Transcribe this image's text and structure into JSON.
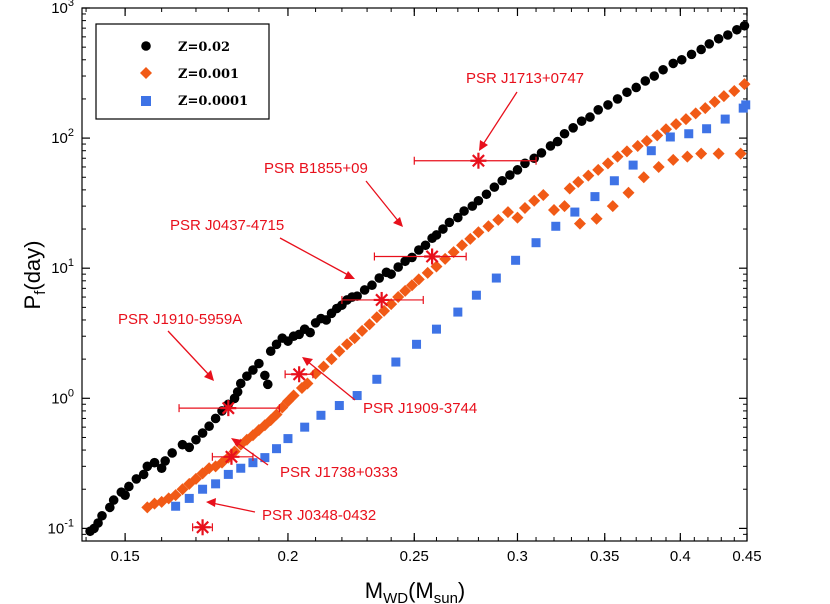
{
  "chart_data": {
    "type": "scatter",
    "title": "",
    "xlabel": {
      "main": "M",
      "sub1": "WD",
      "open": "(M",
      "sub2": "sun",
      "close": ")"
    },
    "ylabel": {
      "main": "P",
      "sub": "f",
      "rest": "(day)"
    },
    "x_scale": "log",
    "y_scale": "log",
    "xlim": [
      0.139,
      0.45
    ],
    "ylim": [
      0.08,
      1000
    ],
    "x_ticks": [
      {
        "value": 0.15,
        "label": "0.15"
      },
      {
        "value": 0.2,
        "label": "0.2"
      },
      {
        "value": 0.25,
        "label": "0.25"
      },
      {
        "value": 0.3,
        "label": "0.3"
      },
      {
        "value": 0.35,
        "label": "0.35"
      },
      {
        "value": 0.4,
        "label": "0.4"
      },
      {
        "value": 0.45,
        "label": "0.45"
      }
    ],
    "y_ticks": [
      {
        "value": 0.1,
        "base": "10",
        "exp": "-1"
      },
      {
        "value": 1,
        "base": "10",
        "exp": "0"
      },
      {
        "value": 10,
        "base": "10",
        "exp": "1"
      },
      {
        "value": 100,
        "base": "10",
        "exp": "2"
      },
      {
        "value": 1000,
        "base": "10",
        "exp": "3"
      }
    ],
    "legend": {
      "position": "top-left",
      "entries": [
        {
          "label": "Z=0.02",
          "marker": "circle",
          "color": "#000000"
        },
        {
          "label": "Z=0.001",
          "marker": "diamond",
          "color": "#f15a16"
        },
        {
          "label": "Z=0.0001",
          "marker": "square",
          "color": "#3e73e6"
        }
      ]
    },
    "series": [
      {
        "name": "Z=0.02",
        "marker": "circle",
        "color": "#000000",
        "points": [
          [
            0.141,
            0.095
          ],
          [
            0.142,
            0.1
          ],
          [
            0.143,
            0.11
          ],
          [
            0.144,
            0.125
          ],
          [
            0.146,
            0.145
          ],
          [
            0.147,
            0.165
          ],
          [
            0.149,
            0.19
          ],
          [
            0.15,
            0.18
          ],
          [
            0.151,
            0.21
          ],
          [
            0.153,
            0.24
          ],
          [
            0.155,
            0.26
          ],
          [
            0.156,
            0.3
          ],
          [
            0.158,
            0.32
          ],
          [
            0.16,
            0.29
          ],
          [
            0.161,
            0.33
          ],
          [
            0.163,
            0.38
          ],
          [
            0.166,
            0.44
          ],
          [
            0.168,
            0.42
          ],
          [
            0.17,
            0.48
          ],
          [
            0.172,
            0.54
          ],
          [
            0.174,
            0.61
          ],
          [
            0.176,
            0.7
          ],
          [
            0.178,
            0.8
          ],
          [
            0.18,
            0.9
          ],
          [
            0.182,
            1.0
          ],
          [
            0.183,
            1.12
          ],
          [
            0.184,
            1.3
          ],
          [
            0.186,
            1.48
          ],
          [
            0.188,
            1.65
          ],
          [
            0.19,
            1.85
          ],
          [
            0.192,
            1.5
          ],
          [
            0.193,
            1.28
          ],
          [
            0.194,
            2.3
          ],
          [
            0.196,
            2.6
          ],
          [
            0.198,
            2.9
          ],
          [
            0.2,
            2.75
          ],
          [
            0.202,
            3.0
          ],
          [
            0.204,
            3.1
          ],
          [
            0.206,
            3.4
          ],
          [
            0.208,
            3.2
          ],
          [
            0.21,
            3.8
          ],
          [
            0.212,
            4.1
          ],
          [
            0.214,
            4.0
          ],
          [
            0.216,
            4.5
          ],
          [
            0.218,
            4.9
          ],
          [
            0.22,
            5.2
          ],
          [
            0.222,
            5.7
          ],
          [
            0.224,
            6.0
          ],
          [
            0.226,
            6.1
          ],
          [
            0.229,
            6.8
          ],
          [
            0.232,
            7.4
          ],
          [
            0.235,
            8.4
          ],
          [
            0.238,
            9.3
          ],
          [
            0.24,
            9.0
          ],
          [
            0.243,
            10.2
          ],
          [
            0.246,
            11.3
          ],
          [
            0.249,
            12.1
          ],
          [
            0.252,
            13.8
          ],
          [
            0.255,
            15.0
          ],
          [
            0.258,
            17.0
          ],
          [
            0.26,
            18.0
          ],
          [
            0.263,
            20.0
          ],
          [
            0.266,
            22.5
          ],
          [
            0.27,
            24.5
          ],
          [
            0.273,
            27.5
          ],
          [
            0.277,
            30.0
          ],
          [
            0.28,
            33.0
          ],
          [
            0.284,
            37.0
          ],
          [
            0.288,
            42.0
          ],
          [
            0.292,
            47.0
          ],
          [
            0.296,
            52.0
          ],
          [
            0.3,
            57.0
          ],
          [
            0.304,
            64.0
          ],
          [
            0.309,
            70.0
          ],
          [
            0.313,
            77.0
          ],
          [
            0.318,
            87.0
          ],
          [
            0.322,
            94.0
          ],
          [
            0.326,
            108.0
          ],
          [
            0.331,
            120.0
          ],
          [
            0.336,
            135.0
          ],
          [
            0.341,
            145.0
          ],
          [
            0.346,
            165.0
          ],
          [
            0.352,
            180.0
          ],
          [
            0.358,
            200.0
          ],
          [
            0.364,
            225.0
          ],
          [
            0.37,
            245.0
          ],
          [
            0.376,
            275.0
          ],
          [
            0.382,
            300.0
          ],
          [
            0.388,
            335.0
          ],
          [
            0.395,
            375.0
          ],
          [
            0.401,
            400.0
          ],
          [
            0.408,
            440.0
          ],
          [
            0.415,
            480.0
          ],
          [
            0.421,
            530.0
          ],
          [
            0.428,
            580.0
          ],
          [
            0.435,
            620.0
          ],
          [
            0.442,
            680.0
          ],
          [
            0.448,
            730.0
          ]
        ]
      },
      {
        "name": "Z=0.001",
        "marker": "diamond",
        "color": "#f15a16",
        "points": [
          [
            0.156,
            0.145
          ],
          [
            0.158,
            0.155
          ],
          [
            0.16,
            0.16
          ],
          [
            0.162,
            0.17
          ],
          [
            0.164,
            0.18
          ],
          [
            0.166,
            0.2
          ],
          [
            0.168,
            0.22
          ],
          [
            0.17,
            0.24
          ],
          [
            0.172,
            0.265
          ],
          [
            0.174,
            0.29
          ],
          [
            0.176,
            0.3
          ],
          [
            0.178,
            0.32
          ],
          [
            0.18,
            0.35
          ],
          [
            0.182,
            0.39
          ],
          [
            0.184,
            0.44
          ],
          [
            0.186,
            0.48
          ],
          [
            0.188,
            0.52
          ],
          [
            0.19,
            0.57
          ],
          [
            0.192,
            0.62
          ],
          [
            0.194,
            0.68
          ],
          [
            0.196,
            0.75
          ],
          [
            0.198,
            0.85
          ],
          [
            0.2,
            0.95
          ],
          [
            0.202,
            1.05
          ],
          [
            0.205,
            1.2
          ],
          [
            0.207,
            1.3
          ],
          [
            0.21,
            1.55
          ],
          [
            0.213,
            1.75
          ],
          [
            0.216,
            2.0
          ],
          [
            0.219,
            2.3
          ],
          [
            0.222,
            2.6
          ],
          [
            0.225,
            2.9
          ],
          [
            0.228,
            3.3
          ],
          [
            0.231,
            3.7
          ],
          [
            0.234,
            4.2
          ],
          [
            0.237,
            4.7
          ],
          [
            0.24,
            5.3
          ],
          [
            0.243,
            6.0
          ],
          [
            0.246,
            6.7
          ],
          [
            0.249,
            7.4
          ],
          [
            0.252,
            8.2
          ],
          [
            0.256,
            9.2
          ],
          [
            0.26,
            10.3
          ],
          [
            0.264,
            11.8
          ],
          [
            0.268,
            13.3
          ],
          [
            0.272,
            15.0
          ],
          [
            0.276,
            16.8
          ],
          [
            0.28,
            18.9
          ],
          [
            0.285,
            21.0
          ],
          [
            0.29,
            23.5
          ],
          [
            0.295,
            27.0
          ],
          [
            0.3,
            24.5
          ],
          [
            0.304,
            29.0
          ],
          [
            0.309,
            33.0
          ],
          [
            0.314,
            36.5
          ],
          [
            0.32,
            28.0
          ],
          [
            0.326,
            30.0
          ],
          [
            0.329,
            41.0
          ],
          [
            0.334,
            46.0
          ],
          [
            0.34,
            51.5
          ],
          [
            0.346,
            57.0
          ],
          [
            0.352,
            64.0
          ],
          [
            0.358,
            72.0
          ],
          [
            0.364,
            79.0
          ],
          [
            0.371,
            87.0
          ],
          [
            0.377,
            95.0
          ],
          [
            0.384,
            105.0
          ],
          [
            0.39,
            117.0
          ],
          [
            0.397,
            128.0
          ],
          [
            0.404,
            140.0
          ],
          [
            0.411,
            155.0
          ],
          [
            0.418,
            170.0
          ],
          [
            0.425,
            190.0
          ],
          [
            0.432,
            210.0
          ],
          [
            0.44,
            230.0
          ],
          [
            0.448,
            260.0
          ],
          [
            0.335,
            22.0
          ],
          [
            0.345,
            24.0
          ],
          [
            0.355,
            30.0
          ],
          [
            0.365,
            38.0
          ],
          [
            0.375,
            50.0
          ],
          [
            0.385,
            60.0
          ],
          [
            0.395,
            68.0
          ],
          [
            0.405,
            72.0
          ],
          [
            0.415,
            76.0
          ],
          [
            0.428,
            76.0
          ],
          [
            0.445,
            76.0
          ]
        ]
      },
      {
        "name": "Z=0.0001",
        "marker": "square",
        "color": "#3e73e6",
        "points": [
          [
            0.164,
            0.148
          ],
          [
            0.168,
            0.17
          ],
          [
            0.172,
            0.2
          ],
          [
            0.176,
            0.22
          ],
          [
            0.18,
            0.26
          ],
          [
            0.184,
            0.29
          ],
          [
            0.188,
            0.32
          ],
          [
            0.192,
            0.35
          ],
          [
            0.196,
            0.41
          ],
          [
            0.2,
            0.49
          ],
          [
            0.206,
            0.6
          ],
          [
            0.212,
            0.74
          ],
          [
            0.219,
            0.88
          ],
          [
            0.226,
            1.05
          ],
          [
            0.234,
            1.4
          ],
          [
            0.242,
            1.9
          ],
          [
            0.251,
            2.6
          ],
          [
            0.26,
            3.4
          ],
          [
            0.27,
            4.6
          ],
          [
            0.279,
            6.2
          ],
          [
            0.289,
            8.4
          ],
          [
            0.299,
            11.5
          ],
          [
            0.31,
            15.7
          ],
          [
            0.321,
            21.0
          ],
          [
            0.332,
            27.0
          ],
          [
            0.344,
            35.5
          ],
          [
            0.356,
            47.0
          ],
          [
            0.368,
            62.0
          ],
          [
            0.38,
            80.0
          ],
          [
            0.393,
            102.0
          ],
          [
            0.406,
            108.0
          ],
          [
            0.419,
            118.0
          ],
          [
            0.433,
            140.0
          ],
          [
            0.447,
            170.0
          ],
          [
            0.449,
            180.0
          ]
        ]
      }
    ],
    "pulsars": [
      {
        "name": "PSR J1713+0747",
        "x": 0.28,
        "y": 67,
        "xerr": [
          0.25,
          0.31
        ]
      },
      {
        "name": "PSR B1855+09",
        "x": 0.258,
        "y": 12.3,
        "xerr": [
          0.233,
          0.274
        ]
      },
      {
        "name": "PSR J0437-4715",
        "x": 0.236,
        "y": 5.7,
        "xerr": [
          0.22,
          0.254
        ]
      },
      {
        "name": "PSR J1910-5959A",
        "x": 0.18,
        "y": 0.84,
        "xerr": [
          0.165,
          0.197
        ]
      },
      {
        "name": "PSR J1909-3744",
        "x": 0.204,
        "y": 1.53,
        "xerr": [
          0.199,
          0.209
        ]
      },
      {
        "name": "PSR J1738+0333",
        "x": 0.181,
        "y": 0.355,
        "xerr": [
          0.175,
          0.188
        ]
      },
      {
        "name": "PSR J0348-0432",
        "x": 0.172,
        "y": 0.102,
        "xerr": [
          0.169,
          0.175
        ]
      }
    ]
  }
}
